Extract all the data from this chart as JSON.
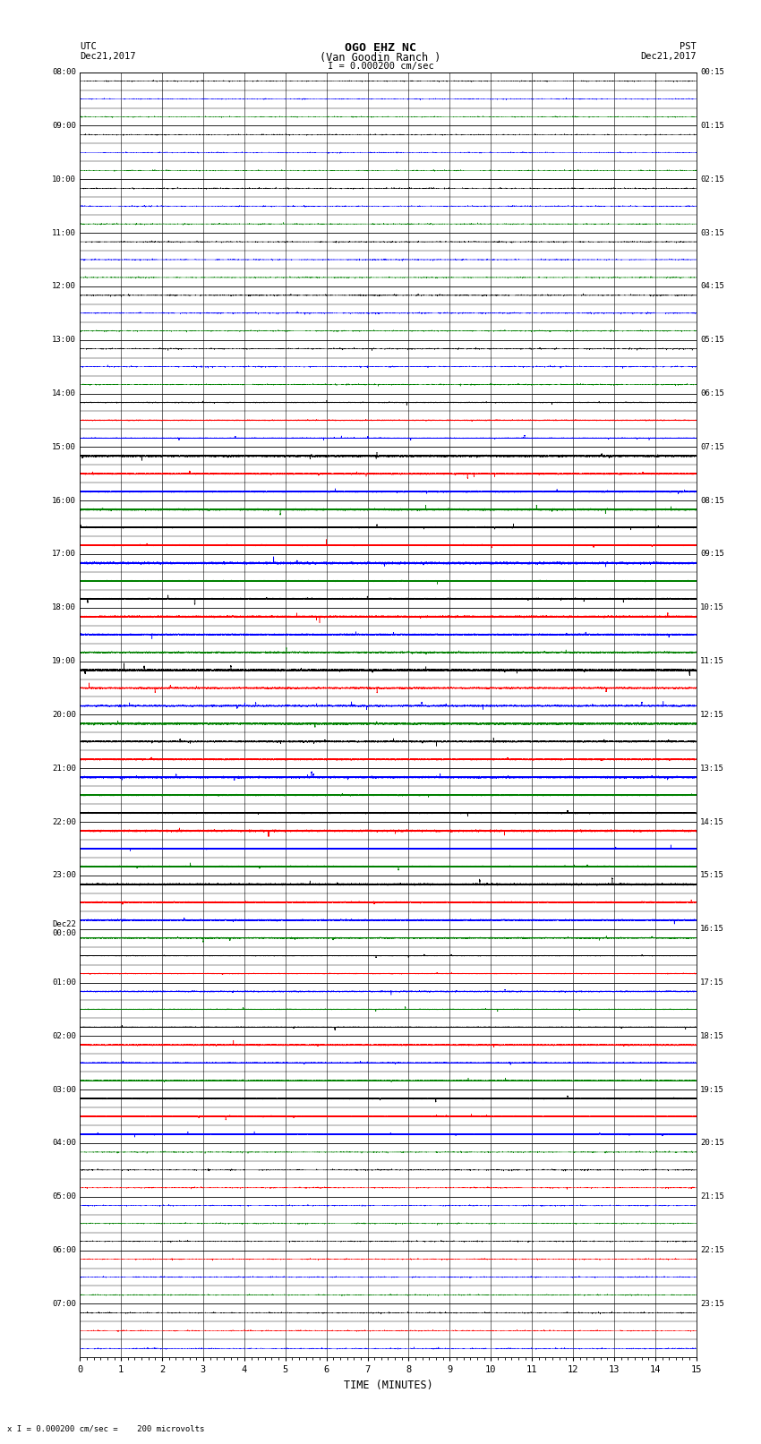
{
  "title_line1": "OGO EHZ NC",
  "title_line2": "(Van Goodin Ranch )",
  "title_line3": "I = 0.000200 cm/sec",
  "left_header_line1": "UTC",
  "left_header_line2": "Dec21,2017",
  "right_header_line1": "PST",
  "right_header_line2": "Dec21,2017",
  "xlabel": "TIME (MINUTES)",
  "footer": "x I = 0.000200 cm/sec =    200 microvolts",
  "utc_labels": [
    "08:00",
    "09:00",
    "10:00",
    "11:00",
    "12:00",
    "13:00",
    "14:00",
    "15:00",
    "16:00",
    "17:00",
    "18:00",
    "19:00",
    "20:00",
    "21:00",
    "22:00",
    "23:00",
    "Dec22\n00:00",
    "01:00",
    "02:00",
    "03:00",
    "04:00",
    "05:00",
    "06:00",
    "07:00"
  ],
  "pst_labels": [
    "00:15",
    "01:15",
    "02:15",
    "03:15",
    "04:15",
    "05:15",
    "06:15",
    "07:15",
    "08:15",
    "09:15",
    "10:15",
    "11:15",
    "12:15",
    "13:15",
    "14:15",
    "15:15",
    "16:15",
    "17:15",
    "18:15",
    "19:15",
    "20:15",
    "21:15",
    "22:15",
    "23:15"
  ],
  "n_hours": 24,
  "rows_per_hour": 3,
  "n_minutes": 15,
  "background_color": "#ffffff",
  "grid_color": "#000000",
  "fig_width": 8.5,
  "fig_height": 16.13,
  "dpi": 100
}
